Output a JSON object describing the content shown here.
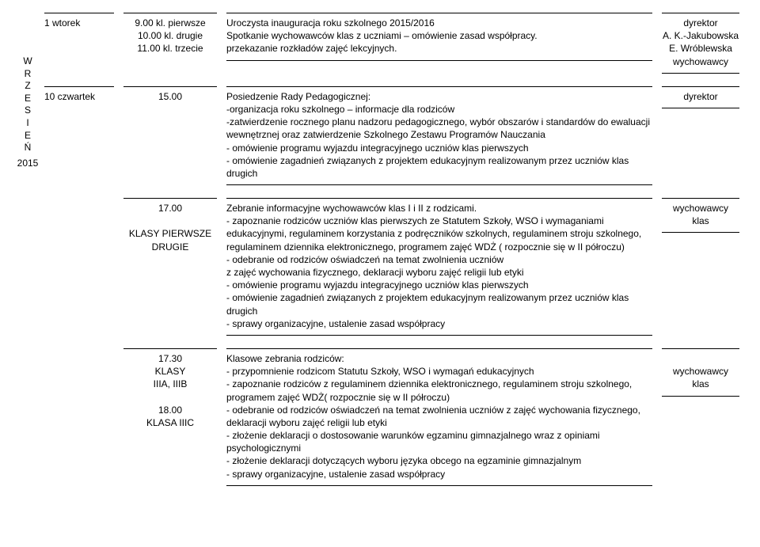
{
  "month_label": "WRZESIEŃ",
  "year": "2015",
  "rows": [
    {
      "date": "1 wtorek",
      "time_lines": [
        "9.00 kl. pierwsze",
        "10.00 kl. drugie",
        "11.00 kl. trzecie"
      ],
      "desc": "Uroczysta inauguracja roku szkolnego 2015/2016\nSpotkanie wychowawców klas z uczniami – omówienie zasad współpracy.\nprzekazanie rozkładów zajęć lekcyjnych.",
      "resp": [
        "dyrektor",
        "A. K.-Jakubowska",
        "E. Wróblewska",
        "wychowawcy"
      ]
    },
    {
      "date": "10 czwartek",
      "time_lines": [
        "15.00"
      ],
      "desc": "Posiedzenie Rady Pedagogicznej:\n-organizacja roku szkolnego – informacje dla rodziców\n-zatwierdzenie  rocznego planu nadzoru pedagogicznego, wybór obszarów i standardów do ewaluacji wewnętrznej oraz zatwierdzenie Szkolnego Zestawu Programów Nauczania\n- omówienie programu wyjazdu integracyjnego uczniów klas pierwszych\n- omówienie zagadnień związanych z projektem edukacyjnym realizowanym przez uczniów klas drugich",
      "resp": [
        "dyrektor"
      ]
    },
    {
      "date": "",
      "time_lines": [
        "17.00",
        "",
        "KLASY PIERWSZE",
        "DRUGIE"
      ],
      "desc": "Zebranie informacyjne wychowawców klas I i II  z rodzicami.\n- zapoznanie rodziców uczniów klas pierwszych ze Statutem Szkoły, WSO i wymaganiami edukacyjnymi, regulaminem korzystania z podręczników szkolnych, regulaminem stroju szkolnego, regulaminem dziennika elektronicznego, programem zajęć WDŻ ( rozpocznie się w II półroczu)\n- odebranie od rodziców oświadczeń na temat zwolnienia uczniów\nz zajęć wychowania fizycznego, deklaracji wyboru zajęć religii lub etyki\n- omówienie programu wyjazdu integracyjnego uczniów klas pierwszych\n- omówienie zagadnień związanych z projektem edukacyjnym realizowanym przez uczniów klas drugich\n- sprawy organizacyjne, ustalenie zasad współpracy",
      "resp": [
        "wychowawcy",
        "klas"
      ]
    },
    {
      "date": "",
      "time_lines": [
        "17.30",
        "KLASY",
        "IIIA, IIIB",
        "",
        "18.00",
        "KLASA IIIC"
      ],
      "desc": "Klasowe zebrania rodziców:\n- przypomnienie rodzicom  Statutu Szkoły, WSO i wymagań edukacyjnych\n- zapoznanie rodziców z regulaminem dziennika elektronicznego, regulaminem stroju szkolnego, programem zajęć WDŻ( rozpocznie się w II półroczu)\n- odebranie od rodziców oświadczeń na temat zwolnienia uczniów z zajęć wychowania fizycznego, deklaracji wyboru zajęć religii lub etyki\n- złożenie deklaracji o dostosowanie warunków egzaminu gimnazjalnego wraz z opiniami psychologicznymi\n- złożenie deklaracji dotyczących wyboru języka obcego na egzaminie gimnazjalnym\n- sprawy organizacyjne, ustalenie zasad współpracy",
      "resp": [
        "",
        "wychowawcy",
        "klas"
      ]
    }
  ]
}
